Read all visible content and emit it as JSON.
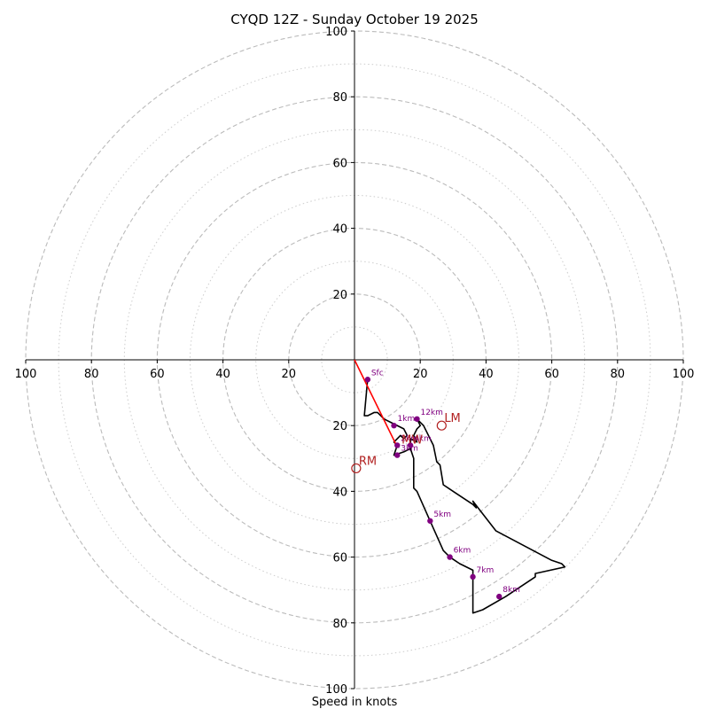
{
  "chart_data": {
    "type": "scatter",
    "title": "CYQD 12Z - Sunday October 19 2025",
    "xlabel": "Speed in knots",
    "ylabel": "",
    "xlim": [
      -100,
      100
    ],
    "ylim": [
      -100,
      100
    ],
    "rings_major": [
      20,
      40,
      60,
      80,
      100
    ],
    "rings_minor": [
      10,
      30,
      50,
      70,
      90
    ],
    "x_tick_labels": [
      "100",
      "80",
      "60",
      "40",
      "20",
      "20",
      "40",
      "60",
      "80",
      "100"
    ],
    "x_tick_values": [
      -100,
      -80,
      -60,
      -40,
      -20,
      20,
      40,
      60,
      80,
      100
    ],
    "y_tick_labels": [
      "100",
      "80",
      "60",
      "40",
      "20",
      "20",
      "40",
      "60",
      "80",
      "100"
    ],
    "y_tick_values": [
      100,
      80,
      60,
      40,
      20,
      -20,
      -40,
      -60,
      -80,
      -100
    ],
    "hodograph": {
      "name": "",
      "color": "#000000",
      "points": [
        [
          4,
          -6
        ],
        [
          3,
          -17
        ],
        [
          4,
          -17
        ],
        [
          6,
          -16
        ],
        [
          7,
          -16
        ],
        [
          9,
          -18
        ],
        [
          11,
          -19
        ],
        [
          15,
          -21
        ],
        [
          16,
          -23
        ],
        [
          15,
          -24
        ],
        [
          14,
          -23
        ],
        [
          12,
          -25
        ],
        [
          13,
          -26
        ],
        [
          12,
          -29
        ],
        [
          15,
          -28
        ],
        [
          17,
          -27
        ],
        [
          17,
          -24
        ],
        [
          19,
          -25
        ],
        [
          18,
          -23
        ],
        [
          19,
          -21
        ],
        [
          20,
          -20
        ],
        [
          19,
          -18
        ],
        [
          21,
          -20
        ],
        [
          24,
          -26
        ],
        [
          25,
          -31
        ],
        [
          26,
          -32
        ],
        [
          27,
          -38
        ],
        [
          30,
          -40
        ],
        [
          36,
          -44
        ],
        [
          37,
          -45
        ],
        [
          36,
          -43
        ],
        [
          43,
          -52
        ],
        [
          60,
          -61
        ],
        [
          63,
          -62
        ],
        [
          64,
          -63
        ],
        [
          55,
          -65
        ],
        [
          55,
          -66
        ],
        [
          46,
          -72
        ],
        [
          39,
          -76
        ],
        [
          36,
          -77
        ],
        [
          36,
          -76
        ],
        [
          36,
          -66
        ],
        [
          36,
          -64
        ],
        [
          32,
          -62
        ],
        [
          29,
          -60
        ],
        [
          27,
          -58
        ],
        [
          23,
          -49
        ],
        [
          19,
          -40
        ],
        [
          18,
          -39
        ],
        [
          18,
          -34
        ],
        [
          18,
          -30
        ],
        [
          17,
          -27
        ]
      ]
    },
    "height_markers": [
      {
        "label": "Sfc",
        "x": 4,
        "y": -6
      },
      {
        "label": "1km",
        "x": 12,
        "y": -20
      },
      {
        "label": "2km",
        "x": 13,
        "y": -26
      },
      {
        "label": "3km",
        "x": 13,
        "y": -29
      },
      {
        "label": "4km",
        "x": 17,
        "y": -26
      },
      {
        "label": "5km",
        "x": 23,
        "y": -49
      },
      {
        "label": "6km",
        "x": 29,
        "y": -60
      },
      {
        "label": "7km",
        "x": 36,
        "y": -66
      },
      {
        "label": "8km",
        "x": 44,
        "y": -72
      },
      {
        "label": "12km",
        "x": 19,
        "y": -18
      }
    ],
    "marker_color": "#800080",
    "storm_motion": [
      {
        "label": "RM",
        "x": 0.5,
        "y": -33
      },
      {
        "label": "LM",
        "x": 26.5,
        "y": -20
      },
      {
        "label": "MW",
        "x": 13.5,
        "y": -26.5
      }
    ],
    "storm_color": "#b22222",
    "shear_vector": {
      "from": [
        0,
        0
      ],
      "to": [
        13,
        -26.5
      ],
      "color": "#ff0000"
    }
  }
}
